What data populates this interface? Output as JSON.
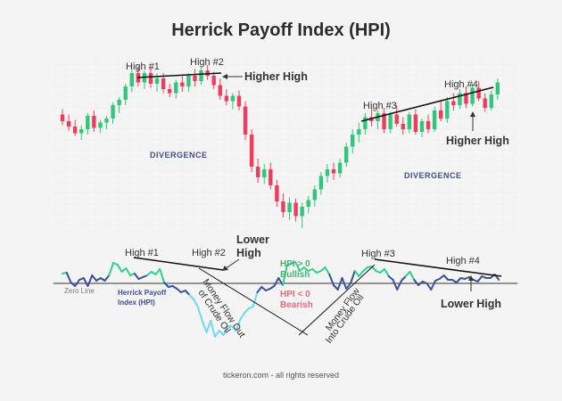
{
  "chart_data": [
    {
      "type": "candlestick",
      "title": "Herrick Payoff Index (HPI)",
      "candles": [
        {
          "o": 129,
          "h": 133,
          "l": 121,
          "c": 124
        },
        {
          "o": 124,
          "h": 129,
          "l": 117,
          "c": 120
        },
        {
          "o": 120,
          "h": 125,
          "l": 113,
          "c": 115
        },
        {
          "o": 115,
          "h": 121,
          "l": 110,
          "c": 118
        },
        {
          "o": 118,
          "h": 130,
          "l": 114,
          "c": 128
        },
        {
          "o": 128,
          "h": 132,
          "l": 116,
          "c": 119
        },
        {
          "o": 119,
          "h": 125,
          "l": 115,
          "c": 123
        },
        {
          "o": 123,
          "h": 128,
          "l": 118,
          "c": 126
        },
        {
          "o": 126,
          "h": 138,
          "l": 122,
          "c": 136
        },
        {
          "o": 136,
          "h": 142,
          "l": 130,
          "c": 140
        },
        {
          "o": 140,
          "h": 152,
          "l": 136,
          "c": 150
        },
        {
          "o": 150,
          "h": 162,
          "l": 146,
          "c": 160
        },
        {
          "o": 160,
          "h": 165,
          "l": 150,
          "c": 153
        },
        {
          "o": 153,
          "h": 162,
          "l": 148,
          "c": 160
        },
        {
          "o": 160,
          "h": 164,
          "l": 149,
          "c": 152
        },
        {
          "o": 152,
          "h": 160,
          "l": 146,
          "c": 156
        },
        {
          "o": 156,
          "h": 160,
          "l": 145,
          "c": 148
        },
        {
          "o": 148,
          "h": 152,
          "l": 142,
          "c": 145
        },
        {
          "o": 145,
          "h": 155,
          "l": 141,
          "c": 153
        },
        {
          "o": 153,
          "h": 158,
          "l": 146,
          "c": 150
        },
        {
          "o": 150,
          "h": 160,
          "l": 146,
          "c": 158
        },
        {
          "o": 158,
          "h": 163,
          "l": 150,
          "c": 154
        },
        {
          "o": 154,
          "h": 164,
          "l": 151,
          "c": 162
        },
        {
          "o": 162,
          "h": 166,
          "l": 155,
          "c": 158
        },
        {
          "o": 158,
          "h": 161,
          "l": 148,
          "c": 151
        },
        {
          "o": 151,
          "h": 156,
          "l": 140,
          "c": 143
        },
        {
          "o": 143,
          "h": 148,
          "l": 136,
          "c": 139
        },
        {
          "o": 139,
          "h": 145,
          "l": 133,
          "c": 143
        },
        {
          "o": 143,
          "h": 147,
          "l": 132,
          "c": 135
        },
        {
          "o": 135,
          "h": 139,
          "l": 110,
          "c": 114
        },
        {
          "o": 114,
          "h": 118,
          "l": 86,
          "c": 90
        },
        {
          "o": 90,
          "h": 96,
          "l": 78,
          "c": 82
        },
        {
          "o": 82,
          "h": 92,
          "l": 77,
          "c": 88
        },
        {
          "o": 88,
          "h": 93,
          "l": 73,
          "c": 76
        },
        {
          "o": 76,
          "h": 80,
          "l": 60,
          "c": 64
        },
        {
          "o": 64,
          "h": 70,
          "l": 52,
          "c": 56
        },
        {
          "o": 56,
          "h": 67,
          "l": 50,
          "c": 63
        },
        {
          "o": 63,
          "h": 66,
          "l": 49,
          "c": 53
        },
        {
          "o": 53,
          "h": 63,
          "l": 44,
          "c": 60
        },
        {
          "o": 60,
          "h": 68,
          "l": 55,
          "c": 65
        },
        {
          "o": 65,
          "h": 76,
          "l": 60,
          "c": 73
        },
        {
          "o": 73,
          "h": 86,
          "l": 69,
          "c": 83
        },
        {
          "o": 83,
          "h": 92,
          "l": 78,
          "c": 88
        },
        {
          "o": 88,
          "h": 93,
          "l": 80,
          "c": 85
        },
        {
          "o": 85,
          "h": 96,
          "l": 82,
          "c": 93
        },
        {
          "o": 93,
          "h": 108,
          "l": 90,
          "c": 105
        },
        {
          "o": 105,
          "h": 118,
          "l": 100,
          "c": 114
        },
        {
          "o": 114,
          "h": 123,
          "l": 108,
          "c": 118
        },
        {
          "o": 118,
          "h": 130,
          "l": 114,
          "c": 127
        },
        {
          "o": 127,
          "h": 134,
          "l": 120,
          "c": 124
        },
        {
          "o": 124,
          "h": 132,
          "l": 118,
          "c": 130
        },
        {
          "o": 130,
          "h": 134,
          "l": 115,
          "c": 118
        },
        {
          "o": 118,
          "h": 131,
          "l": 115,
          "c": 129
        },
        {
          "o": 129,
          "h": 136,
          "l": 120,
          "c": 122
        },
        {
          "o": 122,
          "h": 127,
          "l": 114,
          "c": 118
        },
        {
          "o": 118,
          "h": 131,
          "l": 115,
          "c": 129
        },
        {
          "o": 129,
          "h": 133,
          "l": 114,
          "c": 116
        },
        {
          "o": 116,
          "h": 126,
          "l": 112,
          "c": 124
        },
        {
          "o": 124,
          "h": 129,
          "l": 115,
          "c": 118
        },
        {
          "o": 118,
          "h": 135,
          "l": 116,
          "c": 132
        },
        {
          "o": 132,
          "h": 140,
          "l": 124,
          "c": 126
        },
        {
          "o": 126,
          "h": 142,
          "l": 123,
          "c": 139
        },
        {
          "o": 139,
          "h": 145,
          "l": 132,
          "c": 136
        },
        {
          "o": 136,
          "h": 148,
          "l": 133,
          "c": 145
        },
        {
          "o": 145,
          "h": 150,
          "l": 134,
          "c": 137
        },
        {
          "o": 137,
          "h": 152,
          "l": 135,
          "c": 149
        },
        {
          "o": 149,
          "h": 154,
          "l": 139,
          "c": 141
        },
        {
          "o": 141,
          "h": 145,
          "l": 131,
          "c": 134
        },
        {
          "o": 134,
          "h": 147,
          "l": 132,
          "c": 144
        },
        {
          "o": 144,
          "h": 156,
          "l": 140,
          "c": 153
        }
      ],
      "up_color": "#2fc87a",
      "down_color": "#ef3c5c",
      "annotations": {
        "high1": "High #1",
        "high2": "High #2",
        "higher_high_left": "Higher High",
        "divergence_left": "DIVERGENCE",
        "high3": "High #3",
        "high4": "High #4",
        "higher_high_right": "Higher High",
        "divergence_right": "DIVERGENCE"
      }
    },
    {
      "type": "line",
      "series_name": "Herrick Payoff Index (HPI)",
      "values": [
        11,
        12,
        1,
        -3,
        4,
        6,
        -3,
        9,
        3,
        6,
        3,
        9,
        23,
        21,
        13,
        17,
        9,
        11,
        5,
        7,
        9,
        13,
        10,
        16,
        1,
        -4,
        -3,
        -6,
        -10,
        -8,
        -13,
        -18,
        -27,
        -42,
        -55,
        -42,
        -60,
        -53,
        -58,
        -48,
        -48,
        -53,
        -40,
        -33,
        -28,
        -26,
        -10,
        -4,
        -8,
        -6,
        -3,
        6,
        -2,
        20,
        22,
        24,
        14,
        18,
        14,
        16,
        12,
        14,
        18,
        10,
        -2,
        -7,
        6,
        -6,
        0,
        14,
        8,
        14,
        18,
        19,
        14,
        12,
        16,
        8,
        4,
        -7,
        3,
        8,
        13,
        4,
        -2,
        2,
        0,
        -7,
        3,
        5,
        9,
        4,
        4,
        1,
        6,
        5,
        7,
        4,
        2,
        8,
        6,
        6,
        10,
        4
      ],
      "zero_line": "Zero Line",
      "hpi_label_line1": "Herrick Payoff",
      "hpi_label_line2": "Index (HPI)",
      "positive_color": "#2fd18c",
      "negative_color": "#6fd9f2",
      "mid_color": "#3b4f9a",
      "annotations": {
        "high1": "High #1",
        "high2": "High #2",
        "lower_high_left_1": "Lower",
        "lower_high_left_2": "High",
        "hpi_pos_1": "HPI > 0",
        "hpi_pos_2": "Bullish",
        "hpi_neg_1": "HPI < 0",
        "hpi_neg_2": "Bearish",
        "flow_out_1": "Money Flow Out",
        "flow_out_2": "of Crude Oil",
        "flow_in_1": "Money Flow",
        "flow_in_2": "Into Crude Oil",
        "high3": "High #3",
        "high4": "High #4",
        "lower_high_right": "Lower High"
      }
    }
  ],
  "footer": "tickeron.com - all rights reserved"
}
